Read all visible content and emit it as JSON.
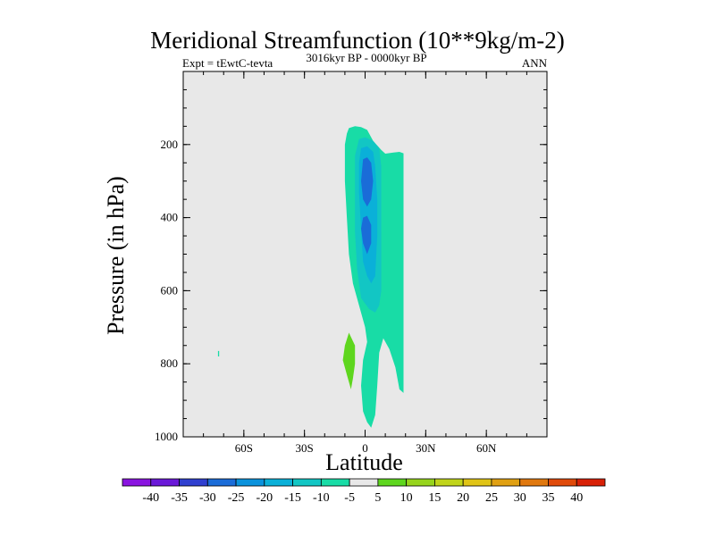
{
  "chart_data": {
    "type": "contour",
    "title": "Meridional Streamfunction (10**9kg/m-2)",
    "subtitle": "3016kyr BP - 0000kyr BP",
    "left_label": "Expt = tEwtC-tevta",
    "right_label": "ANN",
    "xlabel": "Latitude",
    "ylabel": "Pressure (in hPa)",
    "xlim": [
      -90,
      90
    ],
    "ylim": [
      1000,
      0
    ],
    "x_ticks": [
      {
        "value": -60,
        "label": "60S"
      },
      {
        "value": -30,
        "label": "30S"
      },
      {
        "value": 0,
        "label": "0"
      },
      {
        "value": 30,
        "label": "30N"
      },
      {
        "value": 60,
        "label": "60N"
      }
    ],
    "x_minor_step": 10,
    "y_ticks": [
      {
        "value": 200,
        "label": "200"
      },
      {
        "value": 400,
        "label": "400"
      },
      {
        "value": 600,
        "label": "600"
      },
      {
        "value": 800,
        "label": "800"
      },
      {
        "value": 1000,
        "label": "1000"
      }
    ],
    "y_minor_step": 50,
    "colorbar": {
      "levels": [
        -40,
        -35,
        -30,
        -25,
        -20,
        -15,
        -10,
        -5,
        5,
        10,
        15,
        20,
        25,
        30,
        35,
        40
      ],
      "colors": [
        "#8a14e0",
        "#6a18d8",
        "#3040d0",
        "#1a6cd8",
        "#0a92dc",
        "#0ab0d8",
        "#12c6c4",
        "#18dca6",
        "#e8e8e8",
        "#5ed61e",
        "#96d41c",
        "#c0d41a",
        "#e0c416",
        "#e0a012",
        "#e0780e",
        "#e04a0a",
        "#d82006"
      ]
    },
    "background_color": "#e8e8e8",
    "regions": [
      {
        "label": "-10 to -5",
        "color": "#18dca6",
        "outline": [
          [
            -8,
            155
          ],
          [
            -5,
            150
          ],
          [
            -2,
            152
          ],
          [
            1,
            160
          ],
          [
            4,
            190
          ],
          [
            8,
            215
          ],
          [
            10,
            225
          ],
          [
            14,
            222
          ],
          [
            17,
            220
          ],
          [
            19,
            224
          ],
          [
            19,
            400
          ],
          [
            19,
            600
          ],
          [
            19,
            800
          ],
          [
            19,
            880
          ],
          [
            17,
            870
          ],
          [
            15,
            810
          ],
          [
            12,
            760
          ],
          [
            9,
            730
          ],
          [
            7,
            770
          ],
          [
            6,
            860
          ],
          [
            5,
            940
          ],
          [
            3,
            975
          ],
          [
            1,
            960
          ],
          [
            -1,
            930
          ],
          [
            -2,
            860
          ],
          [
            -1,
            790
          ],
          [
            1,
            740
          ],
          [
            0,
            700
          ],
          [
            -3,
            640
          ],
          [
            -6,
            580
          ],
          [
            -8,
            500
          ],
          [
            -9,
            400
          ],
          [
            -10,
            300
          ],
          [
            -10,
            200
          ],
          [
            -9,
            170
          ]
        ]
      },
      {
        "label": "-15 to -10",
        "color": "#12c6c4",
        "outline": [
          [
            -3,
            185
          ],
          [
            0,
            180
          ],
          [
            4,
            190
          ],
          [
            7,
            210
          ],
          [
            8,
            260
          ],
          [
            8,
            400
          ],
          [
            8,
            600
          ],
          [
            7,
            640
          ],
          [
            5,
            660
          ],
          [
            2,
            650
          ],
          [
            -2,
            620
          ],
          [
            -4,
            540
          ],
          [
            -5,
            440
          ],
          [
            -5,
            330
          ],
          [
            -5,
            230
          ]
        ]
      },
      {
        "label": "-20 to -15",
        "color": "#0ab0d8",
        "outline": [
          [
            -2,
            210
          ],
          [
            1,
            205
          ],
          [
            4,
            220
          ],
          [
            5,
            260
          ],
          [
            6,
            350
          ],
          [
            6,
            450
          ],
          [
            5,
            560
          ],
          [
            3,
            580
          ],
          [
            1,
            560
          ],
          [
            -1,
            520
          ],
          [
            -2,
            430
          ],
          [
            -3,
            330
          ],
          [
            -3,
            250
          ]
        ]
      },
      {
        "label": "-25 to -20",
        "color": "#1a6cd8",
        "outline": [
          [
            -1,
            240
          ],
          [
            1,
            235
          ],
          [
            3,
            250
          ],
          [
            4,
            300
          ],
          [
            3,
            350
          ],
          [
            1,
            370
          ],
          [
            -1,
            350
          ],
          [
            -2,
            300
          ]
        ]
      },
      {
        "label": "-25 to -20",
        "color": "#1a6cd8",
        "outline": [
          [
            -1,
            400
          ],
          [
            1,
            395
          ],
          [
            3,
            420
          ],
          [
            3,
            470
          ],
          [
            1,
            500
          ],
          [
            -1,
            470
          ],
          [
            -2,
            430
          ]
        ]
      },
      {
        "label": "5 to 10",
        "color": "#5ed61e",
        "outline": [
          [
            -8,
            715
          ],
          [
            -5,
            750
          ],
          [
            -5,
            800
          ],
          [
            -6,
            840
          ],
          [
            -7,
            870
          ],
          [
            -9,
            830
          ],
          [
            -11,
            790
          ],
          [
            -10,
            750
          ]
        ]
      },
      {
        "label": "-10 to -5",
        "color": "#18dca6",
        "outline": [
          [
            -72.8,
            765
          ],
          [
            -72.2,
            765
          ],
          [
            -72.2,
            780
          ],
          [
            -72.8,
            780
          ]
        ]
      }
    ]
  }
}
